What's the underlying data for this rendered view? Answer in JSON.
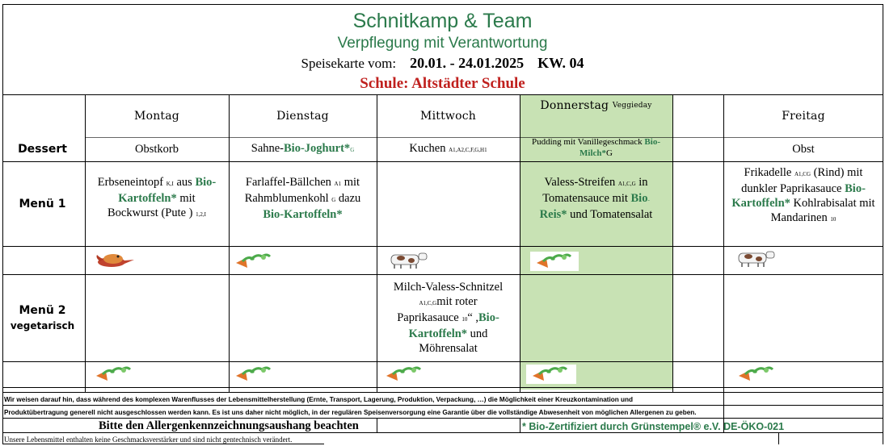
{
  "header": {
    "company": "Schnitkamp & Team",
    "slogan": "Verpflegung mit Verantwortung",
    "menu_label": "Speisekarte vom:",
    "date_range": "20.01. - 24.01.2025",
    "week": "KW. 04",
    "school": "Schule: Altstädter Schule"
  },
  "days": {
    "mon": "Montag",
    "tue": "Dienstag",
    "wed": "Mittwoch",
    "thu": "Donnerstag",
    "thu_note": "Veggieday",
    "fri": "Freitag"
  },
  "rows": {
    "dessert": "Dessert",
    "menu1": "Menü 1",
    "menu2": "Menü 2",
    "menu2_note": "vegetarisch"
  },
  "dessert": {
    "mon": "Obstkorb",
    "tue_pre": "Sahne-",
    "tue_bio": "Bio-Joghurt*",
    "tue_code": "G",
    "wed": "Kuchen",
    "wed_code": "A1,A2,C,F,G,H1",
    "thu_pre": "Pudding mit Vanillegeschmack ",
    "thu_bio1": "Bio-",
    "thu_bio2": "Milch*",
    "thu_code": "G",
    "fri": "Obst"
  },
  "menu1": {
    "mon_a": "Erbseneintopf ",
    "mon_code1": "K,I",
    "mon_b": " aus ",
    "mon_bio1": "Bio-",
    "mon_bio2": "Kartoffeln*",
    "mon_c": " mit",
    "mon_d": "Bockwurst (Pute ) ",
    "mon_code2": "1,2,I",
    "tue_a": "Farlaffel-Bällchen ",
    "tue_code1": "A1",
    "tue_b": " mit",
    "tue_c": "Rahmblumenkohl ",
    "tue_code2": "G",
    "tue_d": " dazu",
    "tue_bio": "Bio-Kartoffeln*",
    "thu_a": "Valess-Streifen ",
    "thu_code": "A1,C,G",
    "thu_b": " in",
    "thu_c": "Tomatensauce mit ",
    "thu_bio1": "Bio",
    "thu_dot": "-",
    "thu_bio2": "Reis*",
    "thu_d": " und Tomatensalat",
    "fri_a": "Frikadelle ",
    "fri_code1": "A1,CG",
    "fri_b": "  (Rind) mit",
    "fri_c": "dunkler Paprikasauce ",
    "fri_bio1": "Bio-",
    "fri_bio2": "Kartoffeln*",
    "fri_d": " Kohlrabisalat mit",
    "fri_e": "Mandarinen ",
    "fri_code2": "10"
  },
  "menu2": {
    "wed_a": "Milch-Valess-Schnitzel",
    "wed_code1": "A1,C,G",
    "wed_b": "mit roter",
    "wed_c": "Paprikasauce ",
    "wed_code2": "10",
    "wed_d": "“ ,",
    "wed_bio1": "Bio-",
    "wed_bio2": "Kartoffeln*",
    "wed_e": " und",
    "wed_f": "Möhrensalat"
  },
  "icons": {
    "menu1": [
      "chicken-icon",
      "vegetable-icon",
      "cow-icon",
      "vegetable-icon",
      "cow-icon"
    ],
    "menu2": [
      "vegetable-icon",
      "vegetable-icon",
      "vegetable-icon",
      "vegetable-icon",
      "vegetable-icon"
    ]
  },
  "footer": {
    "line1": "Wir weisen darauf hin, dass während des komplexen Warenflusses der Lebensmittelherstellung (Ernte, Transport, Lagerung, Produktion, Verpackung, …) die Möglichkeit einer Kreuzkontamination und",
    "line2": "Produktübertragung generell nicht ausgeschlossen werden kann. Es ist uns daher nicht möglich, in der regulären Speisenversorgung eine Garantie über die vollständige Abwesenheit von möglichen Allergenen zu geben.",
    "allergen": "Bitte den  Allergenkennzeichnungsaushang beachten",
    "bio_cert": "* Bio-Zertifiziert durch Grünstempel® e.V. DE-ÖKO-021",
    "note": "Unsere Lebensmittel enthalten keine Geschmacksverstärker und sind nicht gentechnisch verändert."
  },
  "colors": {
    "green_text": "#2b7a4b",
    "school_red": "#c0201e",
    "veggie_fill": "#c8e2b4"
  }
}
